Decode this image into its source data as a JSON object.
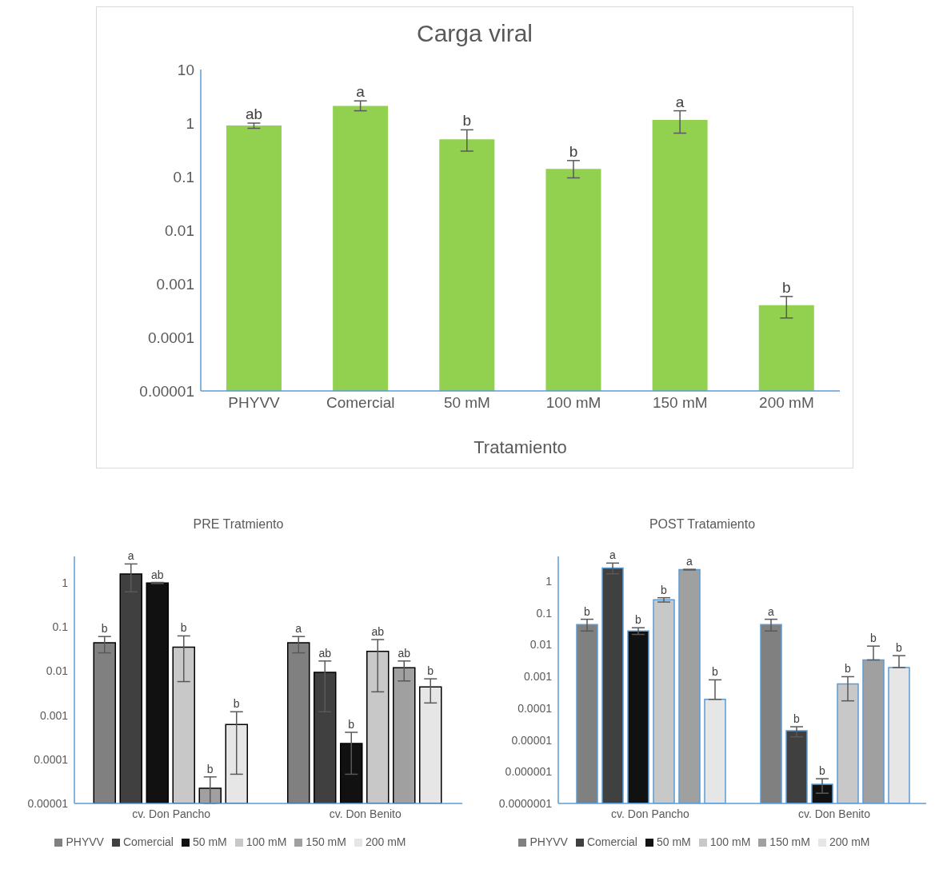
{
  "chart_data": [
    {
      "type": "bar",
      "title": "Carga viral",
      "xlabel": "Tratamiento",
      "log": true,
      "grid": false,
      "legend": false,
      "categories": [
        "PHYVV",
        "Comercial",
        "50 mM",
        "100 mM",
        "150 mM",
        "200 mM"
      ],
      "ylim": [
        1e-05,
        10
      ],
      "yticks": [
        {
          "value": 1e-05,
          "label": "0.00001"
        },
        0.0001,
        0.001,
        0.01,
        0.1,
        1,
        10
      ],
      "series": [
        {
          "color": "#92d050",
          "values": [
            0.9,
            2.1,
            0.5,
            0.14,
            1.15,
            0.0004
          ],
          "errors": [
            [
              0.8,
              1.0
            ],
            [
              1.7,
              2.6
            ],
            [
              0.3,
              0.75
            ],
            [
              0.095,
              0.2
            ],
            [
              0.65,
              1.7
            ],
            [
              0.00023,
              0.00058
            ]
          ],
          "value_labels": [
            "ab",
            "a",
            "b",
            "b",
            "a",
            "b"
          ]
        }
      ]
    },
    {
      "type": "bar",
      "title": "PRE Tratmiento",
      "log": true,
      "grid": false,
      "legend": "bottom",
      "categories": [
        "cv. Don Pancho",
        "cv. Don Benito"
      ],
      "ylim": [
        1e-05,
        4
      ],
      "yticks": [
        {
          "value": 1e-05,
          "label": "0.00001"
        },
        0.0001,
        0.001,
        0.01,
        0.1,
        1
      ],
      "series": [
        {
          "name": "PHYVV",
          "color": "#808080",
          "values": [
            0.044,
            0.044
          ],
          "errors": [
            [
              0.026,
              0.061
            ],
            [
              0.026,
              0.061
            ]
          ],
          "value_labels": [
            "b",
            "a"
          ]
        },
        {
          "name": "Comercial",
          "color": "#404040",
          "values": [
            1.6,
            0.0094
          ],
          "errors": [
            [
              0.63,
              2.7
            ],
            [
              0.0012,
              0.017
            ]
          ],
          "value_labels": [
            "a",
            "ab"
          ]
        },
        {
          "name": "50 mM",
          "color": "#111111",
          "values": [
            1.0,
            0.00023
          ],
          "errors": [
            [
              0.97,
              1.03
            ],
            [
              4.6e-05,
              0.00041
            ]
          ],
          "value_labels": [
            "ab",
            "b"
          ]
        },
        {
          "name": "100 mM",
          "color": "#c8c8c8",
          "values": [
            0.035,
            0.028
          ],
          "errors": [
            [
              0.0058,
              0.063
            ],
            [
              0.0034,
              0.052
            ]
          ],
          "value_labels": [
            "b",
            "ab"
          ]
        },
        {
          "name": "150 mM",
          "color": "#a0a0a0",
          "values": [
            2.2e-05,
            0.012
          ],
          "errors": [
            [
              1e-05,
              4e-05
            ],
            [
              0.006,
              0.017
            ]
          ],
          "value_labels": [
            "b",
            "ab"
          ]
        },
        {
          "name": "200 mM",
          "color": "#e6e6e6",
          "values": [
            0.00062,
            0.0044
          ],
          "errors": [
            [
              4.6e-05,
              0.0012
            ],
            [
              0.0019,
              0.0067
            ]
          ],
          "value_labels": [
            "b",
            "b"
          ]
        }
      ]
    },
    {
      "type": "bar",
      "title": "POST Tratamiento",
      "log": true,
      "grid": false,
      "legend": "bottom",
      "categories": [
        "cv. Don Pancho",
        "cv. Don Benito"
      ],
      "ylim": [
        1e-07,
        6
      ],
      "yticks": [
        {
          "value": 1e-07,
          "label": "0.0000001"
        },
        {
          "value": 1e-06,
          "label": "0.000001"
        },
        {
          "value": 1e-05,
          "label": "0.00001"
        },
        0.0001,
        0.001,
        0.01,
        0.1,
        1
      ],
      "series": [
        {
          "name": "PHYVV",
          "color": "#808080",
          "values": [
            0.043,
            0.043
          ],
          "errors": [
            [
              0.027,
              0.063
            ],
            [
              0.027,
              0.063
            ]
          ],
          "value_labels": [
            "b",
            "a"
          ]
        },
        {
          "name": "Comercial",
          "color": "#404040",
          "values": [
            2.6,
            1.94e-05
          ],
          "errors": [
            [
              1.7,
              3.7
            ],
            [
              1.25e-05,
              2.6e-05
            ]
          ],
          "value_labels": [
            "a",
            "b"
          ]
        },
        {
          "name": "50 mM",
          "color": "#111111",
          "values": [
            0.027,
            4e-07
          ],
          "errors": [
            [
              0.021,
              0.034
            ],
            [
              2.1e-07,
              6e-07
            ]
          ],
          "value_labels": [
            "b",
            "b"
          ]
        },
        {
          "name": "100 mM",
          "color": "#c8c8c8",
          "values": [
            0.26,
            0.00058
          ],
          "errors": [
            [
              0.22,
              0.3
            ],
            [
              0.00017,
              0.00098
            ]
          ],
          "value_labels": [
            "b",
            "b"
          ]
        },
        {
          "name": "150 mM",
          "color": "#a0a0a0",
          "values": [
            2.3,
            0.0033
          ],
          "errors": [
            [
              2.25,
              2.35
            ],
            [
              0.0033,
              0.009
            ]
          ],
          "value_labels": [
            "a",
            "b"
          ]
        },
        {
          "name": "200 mM",
          "color": "#e6e6e6",
          "values": [
            0.00019,
            0.0019
          ],
          "errors": [
            [
              0.00019,
              0.00078
            ],
            [
              0.0019,
              0.0045
            ]
          ],
          "value_labels": [
            "b",
            "b"
          ]
        }
      ]
    }
  ]
}
